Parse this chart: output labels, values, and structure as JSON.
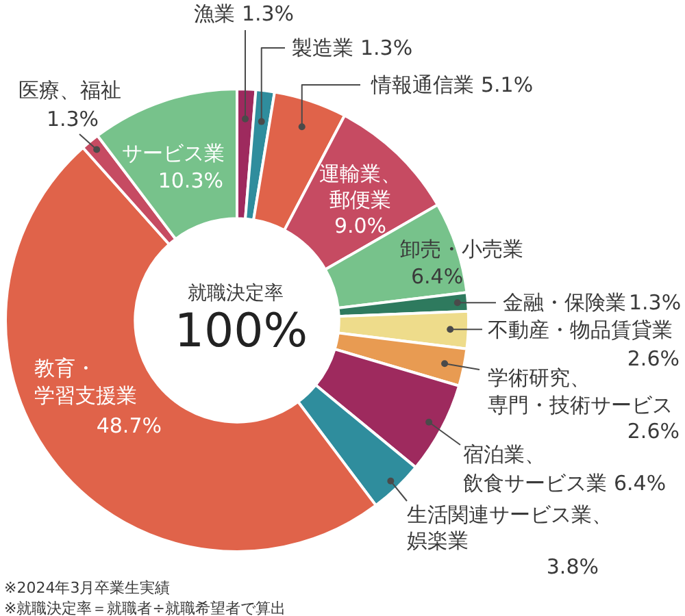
{
  "chart_data": {
    "type": "donut",
    "categories": [
      "漁業",
      "製造業",
      "情報通信業",
      "運輸業、郵便業",
      "卸売・小売業",
      "金融・保険業",
      "不動産・物品賃貸業",
      "学術研究、専門・技術サービス",
      "宿泊業、飲食サービス業",
      "生活関連サービス業、娯楽業",
      "教育・学習支援業",
      "医療、福祉",
      "サービス業"
    ],
    "values": [
      1.3,
      1.3,
      5.1,
      9.0,
      6.4,
      1.3,
      2.6,
      2.6,
      6.4,
      3.8,
      48.7,
      1.3,
      10.3
    ],
    "value_labels": [
      "1.3%",
      "1.3%",
      "5.1%",
      "9.0%",
      "6.4%",
      "1.3%",
      "2.6%",
      "2.6%",
      "6.4%",
      "3.8%",
      "48.7%",
      "1.3%",
      "10.3%"
    ],
    "colors": [
      "#9e2a5e",
      "#2f8d9d",
      "#e0634a",
      "#c64b62",
      "#77c28b",
      "#2e7a5e",
      "#eedc8b",
      "#e89b52",
      "#9e2a5e",
      "#2f8d9d",
      "#e0634a",
      "#c64b62",
      "#77c28b"
    ],
    "annotations": [
      "就職決定率",
      "100%",
      "※2024年3月卒業生実績",
      "※就職決定率＝就職者÷就職希望者で算出"
    ]
  }
}
